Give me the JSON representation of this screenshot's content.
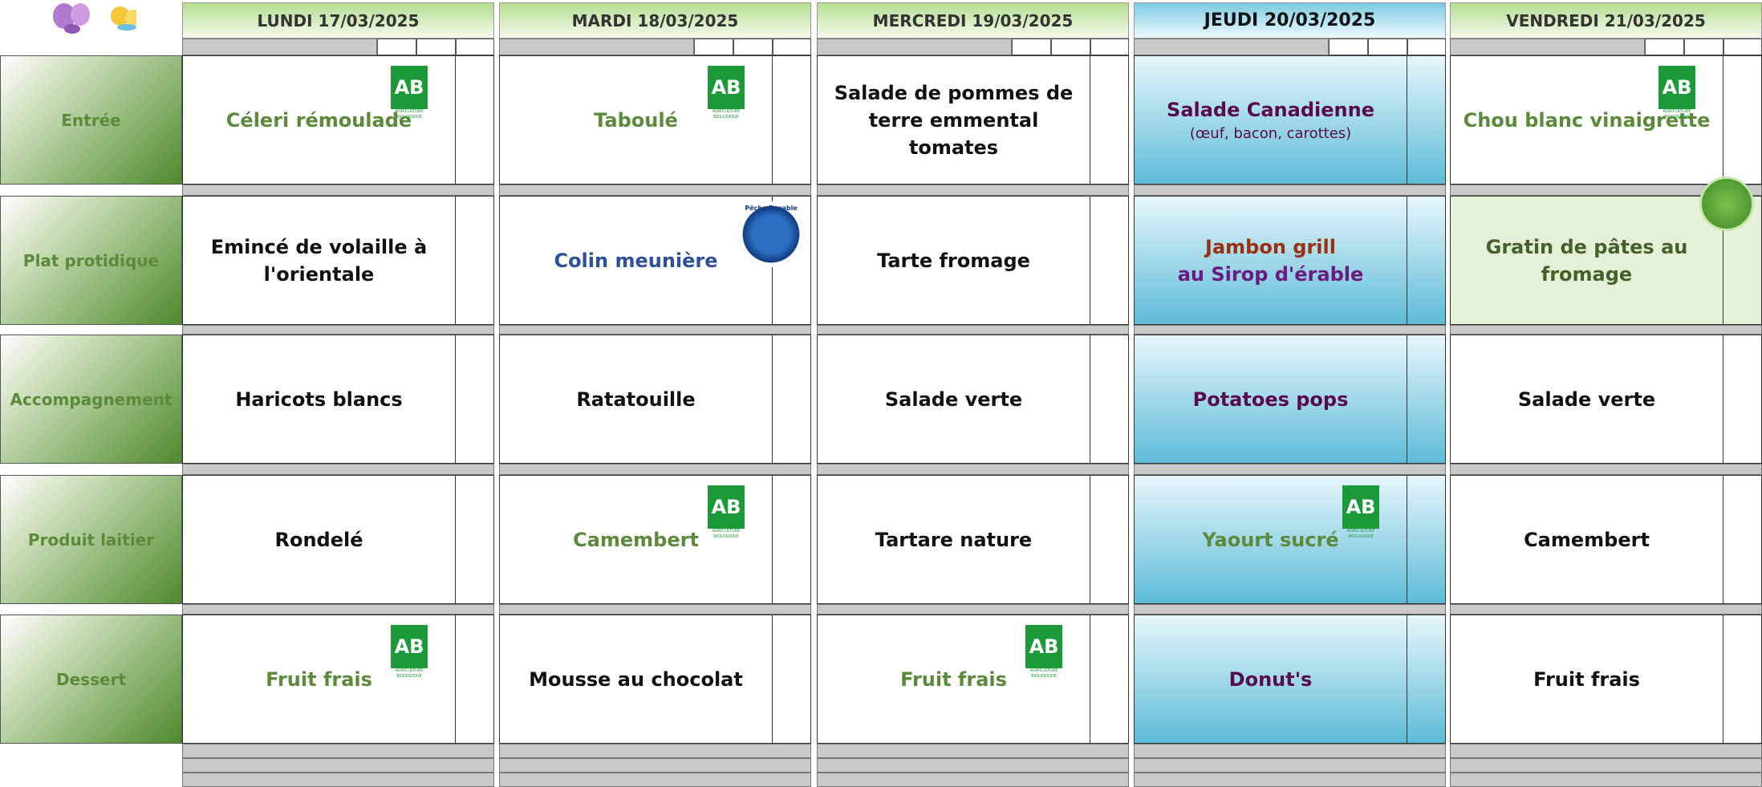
{
  "categories": [
    "Entrée",
    "Plat protidique",
    "Accompagnement",
    "Produit laitier",
    "Dessert"
  ],
  "days": [
    {
      "header": "LUNDI  17/03/2025",
      "cells": [
        {
          "text": "Céleri rémoulade",
          "color": "#5b8a3a",
          "logo": "AB"
        },
        {
          "text": "Emincé de volaille à l'orientale"
        },
        {
          "text": "Haricots blancs"
        },
        {
          "text": "Rondelé"
        },
        {
          "text": "Fruit frais",
          "color": "#5b8a3a",
          "logo": "AB"
        }
      ]
    },
    {
      "header": "MARDI 18/03/2025",
      "cells": [
        {
          "text": "Taboulé",
          "color": "#5b8a3a",
          "logo": "AB"
        },
        {
          "text": "Colin meunière",
          "color": "#2e4f9a",
          "logo": "Pêche Durable"
        },
        {
          "text": "Ratatouille"
        },
        {
          "text": "Camembert",
          "color": "#5b8a3a",
          "logo": "AB"
        },
        {
          "text": "Mousse au chocolat"
        }
      ]
    },
    {
      "header": "MERCREDI 19/03/2025",
      "cells": [
        {
          "text": "Salade de pommes de terre emmental tomates"
        },
        {
          "text": "Tarte fromage"
        },
        {
          "text": "Salade verte"
        },
        {
          "text": "Tartare nature"
        },
        {
          "text": "Fruit frais",
          "color": "#5b8a3a",
          "logo": "AB"
        }
      ]
    },
    {
      "header": "JEUDI 20/03/2025",
      "cells": [
        {
          "text": "Salade Canadienne",
          "color": "#5a0a4a",
          "subtext": "(œuf, bacon, carottes)"
        },
        {
          "text": "Jambon grill",
          "color": "#9a3010",
          "subtext": "au Sirop d'érable",
          "subcolor": "#6a1a80"
        },
        {
          "text": "Potatoes pops",
          "color": "#5a0a4a"
        },
        {
          "text": "Yaourt sucré",
          "color": "#5b8a3a",
          "logo": "AB"
        },
        {
          "text": "Donut's",
          "color": "#5a0a4a"
        }
      ]
    },
    {
      "header": "VENDREDI 21/03/2025",
      "cells": [
        {
          "text": "Chou blanc vinaigrette",
          "color": "#5b8a3a",
          "logo": "AB"
        },
        {
          "text": "Gratin de pâtes au fromage",
          "color": "#44612a"
        },
        {
          "text": "Salade verte"
        },
        {
          "text": "Camembert"
        },
        {
          "text": "Fruit frais"
        }
      ]
    }
  ],
  "logo_caption": "AGRICULTURE BIOLOGIQUE"
}
